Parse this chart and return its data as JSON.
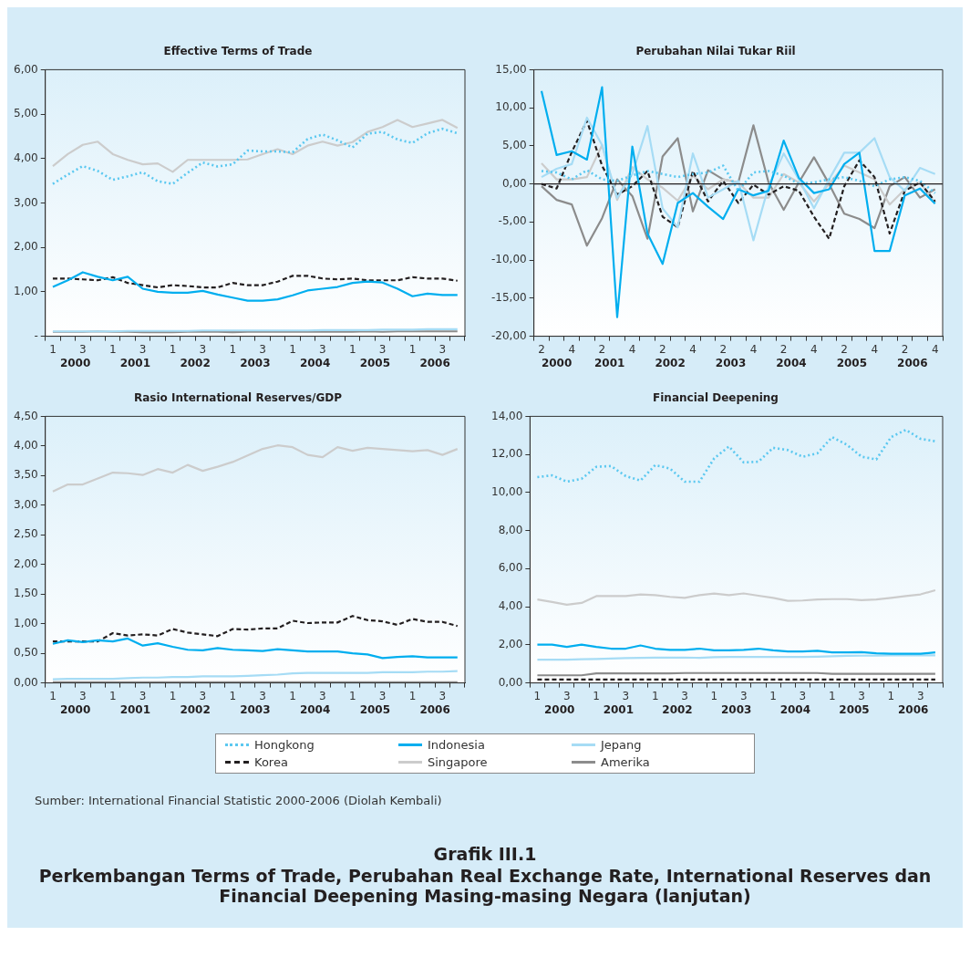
{
  "chart_data": [
    {
      "type": "line",
      "title": "Effective Terms of Trade",
      "legend": "bottom",
      "categories": [
        "1",
        null,
        "3",
        null,
        "1",
        null,
        "3",
        null,
        "1",
        null,
        "3",
        null,
        "1",
        null,
        "3",
        null,
        "1",
        null,
        "3",
        null,
        "1",
        null,
        "3",
        null,
        "1",
        null,
        "3",
        null
      ],
      "ylim": [
        0,
        6
      ],
      "yticks": [
        {
          "value": 0,
          "label": "-"
        },
        {
          "value": 1,
          "label": "1,00"
        },
        {
          "value": 2,
          "label": "2,00"
        },
        {
          "value": 3,
          "label": "3,00"
        },
        {
          "value": 4,
          "label": "4,00"
        },
        {
          "value": 5,
          "label": "5,00"
        },
        {
          "value": 6,
          "label": "6,00"
        }
      ],
      "annotations": [
        "2000",
        "2001",
        "2002",
        "2003",
        "2004",
        "2005",
        "2006"
      ],
      "series": [
        {
          "name": "Hongkong",
          "color": "#5bc8f0",
          "line_style": "dotted",
          "values": [
            3.43,
            3.64,
            3.83,
            3.72,
            3.52,
            3.6,
            3.69,
            3.49,
            3.43,
            3.68,
            3.91,
            3.82,
            3.87,
            4.18,
            4.16,
            4.16,
            4.14,
            4.44,
            4.54,
            4.41,
            4.25,
            4.56,
            4.6,
            4.43,
            4.35,
            4.57,
            4.67,
            4.57
          ]
        },
        {
          "name": "Indonesia",
          "color": "#00aeef",
          "line_style": "solid",
          "values": [
            1.11,
            1.26,
            1.44,
            1.34,
            1.26,
            1.34,
            1.07,
            1.0,
            0.98,
            0.98,
            1.02,
            0.94,
            0.87,
            0.8,
            0.8,
            0.83,
            0.92,
            1.03,
            1.07,
            1.11,
            1.2,
            1.23,
            1.21,
            1.07,
            0.9,
            0.96,
            0.93,
            0.93
          ]
        },
        {
          "name": "Jepang",
          "color": "#a6dcf5",
          "line_style": "solid",
          "values": [
            0.11,
            0.11,
            0.11,
            0.11,
            0.11,
            0.12,
            0.12,
            0.12,
            0.12,
            0.12,
            0.13,
            0.13,
            0.13,
            0.13,
            0.13,
            0.13,
            0.13,
            0.13,
            0.14,
            0.14,
            0.14,
            0.14,
            0.15,
            0.15,
            0.15,
            0.16,
            0.16,
            0.16
          ]
        },
        {
          "name": "Korea",
          "color": "#231f20",
          "line_style": "dashed",
          "values": [
            1.3,
            1.3,
            1.28,
            1.26,
            1.33,
            1.2,
            1.15,
            1.1,
            1.15,
            1.13,
            1.1,
            1.1,
            1.2,
            1.15,
            1.15,
            1.23,
            1.36,
            1.36,
            1.3,
            1.28,
            1.3,
            1.26,
            1.26,
            1.26,
            1.33,
            1.3,
            1.3,
            1.25
          ]
        },
        {
          "name": "Singapore",
          "color": "#cccccc",
          "line_style": "solid",
          "values": [
            3.83,
            4.1,
            4.31,
            4.38,
            4.1,
            3.97,
            3.87,
            3.89,
            3.7,
            3.97,
            3.97,
            3.97,
            3.97,
            3.98,
            4.1,
            4.21,
            4.1,
            4.29,
            4.38,
            4.29,
            4.37,
            4.6,
            4.71,
            4.87,
            4.71,
            4.79,
            4.87,
            4.69
          ]
        },
        {
          "name": "Amerika",
          "color": "#8c8c8c",
          "line_style": "solid",
          "values": [
            0.1,
            0.1,
            0.1,
            0.11,
            0.1,
            0.1,
            0.09,
            0.09,
            0.09,
            0.1,
            0.1,
            0.1,
            0.09,
            0.1,
            0.1,
            0.1,
            0.1,
            0.1,
            0.1,
            0.1,
            0.1,
            0.11,
            0.1,
            0.11,
            0.11,
            0.11,
            0.11,
            0.11
          ]
        }
      ]
    },
    {
      "type": "line",
      "title": "Perubahan Nilai Tukar Riil",
      "categories": [
        "2",
        null,
        "4",
        null,
        "2",
        null,
        "4",
        null,
        "2",
        null,
        "4",
        null,
        "2",
        null,
        "4",
        null,
        "2",
        null,
        "4",
        null,
        "2",
        null,
        "4",
        null,
        "2",
        null,
        "4"
      ],
      "ylim": [
        -20,
        15
      ],
      "yticks": [
        {
          "value": -20,
          "label": "-20,00"
        },
        {
          "value": -15,
          "label": "-15,00"
        },
        {
          "value": -10,
          "label": "-10,00"
        },
        {
          "value": -5,
          "label": "-5,00"
        },
        {
          "value": 0,
          "label": "0,00"
        },
        {
          "value": 5,
          "label": "5,00"
        },
        {
          "value": 10,
          "label": "10,00"
        },
        {
          "value": 15,
          "label": "15,00"
        }
      ],
      "ref_lines": [
        {
          "axis": "y",
          "value": 0,
          "color": "#231f20"
        }
      ],
      "annotations": [
        "2000",
        "2001",
        "2002",
        "2003",
        "2004",
        "2005",
        "2006"
      ],
      "series": [
        {
          "color": "#5bc8f0",
          "line_style": "dotted",
          "values": [
            1.7,
            1.5,
            0.6,
            1.8,
            0.6,
            0.4,
            1.1,
            1.7,
            1.3,
            0.9,
            1.3,
            1.5,
            2.4,
            -0.9,
            1.5,
            1.7,
            1.1,
            0,
            0.2,
            0.6,
            0.9,
            0.4,
            -0.3,
            0.6,
            0.9,
            0.4,
            -1.2
          ]
        },
        {
          "color": "#00aeef",
          "line_style": "solid",
          "values": [
            12.2,
            3.8,
            4.3,
            3.2,
            12.7,
            -17.5,
            4.9,
            -6.5,
            -10.5,
            -2.5,
            -1.2,
            -3.0,
            -4.6,
            -0.7,
            -1.5,
            -0.9,
            5.7,
            0.8,
            -1.2,
            -0.7,
            2.6,
            4.1,
            -8.8,
            -8.8,
            -1.5,
            -0.6,
            -2.6
          ]
        },
        {
          "color": "#a6dcf5",
          "line_style": "solid",
          "values": [
            0.9,
            2.0,
            2.6,
            8.7,
            5.1,
            -1.8,
            1.3,
            7.6,
            -3.2,
            -5.7,
            4.0,
            -1.8,
            -0.7,
            0.4,
            -7.4,
            -0.3,
            4.0,
            0.6,
            -3.2,
            0.6,
            4.1,
            4.1,
            6.0,
            0.9,
            -0.9,
            2.1,
            1.3
          ]
        },
        {
          "color": "#231f20",
          "line_style": "dashed",
          "values": [
            0,
            -0.6,
            4.2,
            8.3,
            2.4,
            -1.4,
            -0.3,
            1.7,
            -4.3,
            -5.7,
            1.7,
            -2.3,
            0.4,
            -2.5,
            -0.1,
            -1.4,
            -0.3,
            -0.9,
            -4.3,
            -7.2,
            -0.3,
            3.1,
            0.9,
            -6.5,
            -0.9,
            0.2,
            -2.3
          ]
        },
        {
          "color": "#cccccc",
          "line_style": "solid",
          "values": [
            2.7,
            0.6,
            0.6,
            0.9,
            5.1,
            -2.1,
            2.2,
            0.6,
            -0.5,
            -2.2,
            1.1,
            -0.7,
            0.6,
            0.2,
            -1.8,
            -1.8,
            1.3,
            0.2,
            -2.3,
            0,
            2.4,
            1.5,
            0.6,
            -2.7,
            -0.7,
            0.2,
            -2.5
          ]
        },
        {
          "color": "#8c8c8c",
          "line_style": "solid",
          "values": [
            -0.3,
            -2.1,
            -2.7,
            -8.1,
            -4.5,
            0.6,
            -1.6,
            -7.2,
            3.6,
            6.0,
            -3.6,
            1.8,
            0.6,
            0.2,
            7.7,
            0.2,
            -3.4,
            0.2,
            3.5,
            0,
            -3.9,
            -4.6,
            -5.8,
            -0.3,
            0.9,
            -1.8,
            -0.7
          ]
        }
      ]
    },
    {
      "type": "line",
      "title": "Rasio International Reserves/GDP",
      "categories": [
        "1",
        null,
        "3",
        null,
        "1",
        null,
        "3",
        null,
        "1",
        null,
        "3",
        null,
        "1",
        null,
        "3",
        null,
        "1",
        null,
        "3",
        null,
        "1",
        null,
        "3",
        null,
        "1",
        null,
        "3",
        null
      ],
      "ylim": [
        0,
        4.5
      ],
      "yticks": [
        {
          "value": 0,
          "label": "0,00"
        },
        {
          "value": 0.5,
          "label": "0,50"
        },
        {
          "value": 1,
          "label": "1,00"
        },
        {
          "value": 1.5,
          "label": "1,50"
        },
        {
          "value": 2,
          "label": "2,00"
        },
        {
          "value": 2.5,
          "label": "2,50"
        },
        {
          "value": 3,
          "label": "3,00"
        },
        {
          "value": 3.5,
          "label": "3,50"
        },
        {
          "value": 4,
          "label": "4,00"
        },
        {
          "value": 4.5,
          "label": "4,50"
        }
      ],
      "annotations": [
        "2000",
        "2001",
        "2002",
        "2003",
        "2004",
        "2005",
        "2006"
      ],
      "series": [
        {
          "color": "#00aeef",
          "line_style": "solid",
          "values": [
            0.66,
            0.72,
            0.69,
            0.72,
            0.7,
            0.75,
            0.63,
            0.67,
            0.61,
            0.56,
            0.55,
            0.59,
            0.56,
            0.55,
            0.54,
            0.57,
            0.55,
            0.53,
            0.53,
            0.53,
            0.5,
            0.48,
            0.42,
            0.44,
            0.45,
            0.43,
            0.43,
            0.43
          ]
        },
        {
          "color": "#a6dcf5",
          "line_style": "solid",
          "values": [
            0.06,
            0.07,
            0.07,
            0.07,
            0.07,
            0.08,
            0.09,
            0.09,
            0.1,
            0.1,
            0.11,
            0.11,
            0.11,
            0.12,
            0.13,
            0.14,
            0.16,
            0.17,
            0.17,
            0.17,
            0.17,
            0.17,
            0.18,
            0.18,
            0.18,
            0.19,
            0.19,
            0.2
          ]
        },
        {
          "color": "#231f20",
          "line_style": "dashed",
          "values": [
            0.7,
            0.7,
            0.7,
            0.7,
            0.84,
            0.8,
            0.82,
            0.8,
            0.91,
            0.85,
            0.82,
            0.79,
            0.91,
            0.9,
            0.92,
            0.92,
            1.05,
            1.01,
            1.02,
            1.02,
            1.13,
            1.06,
            1.04,
            0.98,
            1.08,
            1.03,
            1.03,
            0.96
          ]
        },
        {
          "color": "#cccccc",
          "line_style": "solid",
          "values": [
            3.23,
            3.35,
            3.35,
            3.45,
            3.55,
            3.54,
            3.51,
            3.61,
            3.55,
            3.68,
            3.58,
            3.65,
            3.73,
            3.84,
            3.95,
            4.01,
            3.98,
            3.85,
            3.81,
            3.98,
            3.92,
            3.97,
            3.95,
            3.93,
            3.91,
            3.93,
            3.85,
            3.95
          ]
        },
        {
          "color": "#8c8c8c",
          "line_style": "solid",
          "values": [
            0.01,
            0.01,
            0.01,
            0.01,
            0.01,
            0.01,
            0.01,
            0.01,
            0.01,
            0.01,
            0.01,
            0.01,
            0.01,
            0.01,
            0.01,
            0.01,
            0.01,
            0.01,
            0.01,
            0.01,
            0.01,
            0.01,
            0.01,
            0.01,
            0.01,
            0.01,
            0.01,
            0.01
          ]
        }
      ]
    },
    {
      "type": "line",
      "title": "Financial Deepening",
      "categories": [
        "1",
        null,
        "3",
        null,
        "1",
        null,
        "3",
        null,
        "1",
        null,
        "3",
        null,
        "1",
        null,
        "3",
        null,
        "1",
        null,
        "3",
        null,
        "1",
        null,
        "3",
        null,
        "1",
        null,
        "3",
        null
      ],
      "ylim": [
        0,
        14
      ],
      "yticks": [
        {
          "value": 0,
          "label": "0,00"
        },
        {
          "value": 2,
          "label": "2,00"
        },
        {
          "value": 4,
          "label": "4,00"
        },
        {
          "value": 6,
          "label": "6,00"
        },
        {
          "value": 8,
          "label": "8,00"
        },
        {
          "value": 10,
          "label": "10,00"
        },
        {
          "value": 12,
          "label": "12,00"
        },
        {
          "value": 14,
          "label": "14,00"
        }
      ],
      "annotations": [
        "2000",
        "2001",
        "2002",
        "2003",
        "2004",
        "2005",
        "2006"
      ],
      "series": [
        {
          "color": "#5bc8f0",
          "line_style": "dotted",
          "values": [
            10.81,
            10.9,
            10.57,
            10.72,
            11.35,
            11.39,
            10.86,
            10.63,
            11.44,
            11.26,
            10.57,
            10.57,
            11.8,
            12.42,
            11.58,
            11.62,
            12.35,
            12.23,
            11.88,
            12.06,
            12.91,
            12.51,
            11.88,
            11.74,
            12.91,
            13.29,
            12.82,
            12.69
          ]
        },
        {
          "color": "#00aeef",
          "line_style": "solid",
          "values": [
            2.01,
            2.01,
            1.89,
            2.01,
            1.89,
            1.8,
            1.8,
            1.97,
            1.8,
            1.74,
            1.74,
            1.8,
            1.71,
            1.71,
            1.74,
            1.8,
            1.71,
            1.65,
            1.65,
            1.69,
            1.6,
            1.6,
            1.62,
            1.56,
            1.53,
            1.53,
            1.53,
            1.6
          ]
        },
        {
          "color": "#a6dcf5",
          "line_style": "solid",
          "values": [
            1.22,
            1.22,
            1.22,
            1.24,
            1.26,
            1.28,
            1.3,
            1.32,
            1.33,
            1.33,
            1.33,
            1.32,
            1.35,
            1.36,
            1.36,
            1.36,
            1.36,
            1.36,
            1.36,
            1.38,
            1.4,
            1.42,
            1.43,
            1.44,
            1.45,
            1.45,
            1.45,
            1.45
          ]
        },
        {
          "color": "#231f20",
          "line_style": "dashed",
          "values": [
            0.18,
            0.18,
            0.18,
            0.18,
            0.18,
            0.18,
            0.18,
            0.18,
            0.18,
            0.18,
            0.18,
            0.18,
            0.18,
            0.18,
            0.18,
            0.18,
            0.18,
            0.18,
            0.18,
            0.18,
            0.18,
            0.18,
            0.18,
            0.18,
            0.18,
            0.18,
            0.18,
            0.18
          ]
        },
        {
          "color": "#cccccc",
          "line_style": "solid",
          "values": [
            4.38,
            4.25,
            4.11,
            4.2,
            4.56,
            4.56,
            4.56,
            4.65,
            4.61,
            4.52,
            4.47,
            4.61,
            4.69,
            4.61,
            4.7,
            4.58,
            4.47,
            4.31,
            4.33,
            4.38,
            4.4,
            4.4,
            4.35,
            4.38,
            4.47,
            4.56,
            4.65,
            4.87
          ]
        },
        {
          "color": "#8c8c8c",
          "line_style": "solid",
          "values": [
            0.4,
            0.4,
            0.4,
            0.4,
            0.5,
            0.5,
            0.5,
            0.5,
            0.5,
            0.5,
            0.52,
            0.52,
            0.52,
            0.52,
            0.52,
            0.52,
            0.52,
            0.52,
            0.52,
            0.52,
            0.48,
            0.48,
            0.48,
            0.48,
            0.48,
            0.48,
            0.48,
            0.48
          ]
        }
      ]
    },
    {
      "type": "other",
      "title": "Grafik III.1",
      "subtitle": "Perkembangan Terms of Trade, Perubahan Real Exchange Rate, International Reserves dan Financial Deepening Masing-masing Negara (lanjutan)",
      "annotations": [
        "Sumber: International Financial Statistic 2000-2006 (Diolah Kembali)"
      ]
    }
  ]
}
